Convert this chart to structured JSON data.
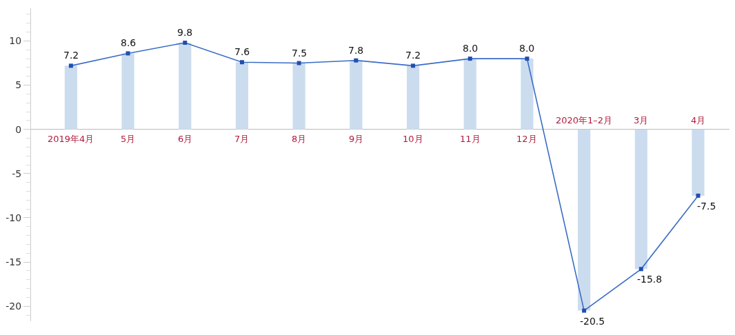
{
  "chart_data": {
    "type": "bar",
    "categories": [
      "2019年4月",
      "5月",
      "6月",
      "7月",
      "8月",
      "9月",
      "10月",
      "11月",
      "12月",
      "2020年1–2月",
      "3月",
      "4月"
    ],
    "series": [
      {
        "color": "#ccdcef",
        "values": [
          7.2,
          8.6,
          9.8,
          7.6,
          7.5,
          7.8,
          7.2,
          8.0,
          8.0,
          -20.5,
          -15.8,
          -7.5
        ]
      },
      {
        "type": "line",
        "color": "#3a6cc6",
        "values": [
          7.2,
          8.6,
          9.8,
          7.6,
          7.5,
          7.8,
          7.2,
          8.0,
          8.0,
          -20.5,
          -15.8,
          -7.5
        ],
        "value_labels": [
          "7.2",
          "8.6",
          "9.8",
          "7.6",
          "7.5",
          "7.8",
          "7.2",
          "8.0",
          "8.0",
          "-20.5",
          "-15.8",
          "-7.5"
        ]
      }
    ],
    "ylim": [
      -21.7,
      13.7
    ],
    "yticks": [
      -20,
      -15,
      -10,
      -5,
      0,
      5,
      10
    ],
    "marker": "square",
    "line_style": "solid",
    "tick_labels": "y"
  }
}
